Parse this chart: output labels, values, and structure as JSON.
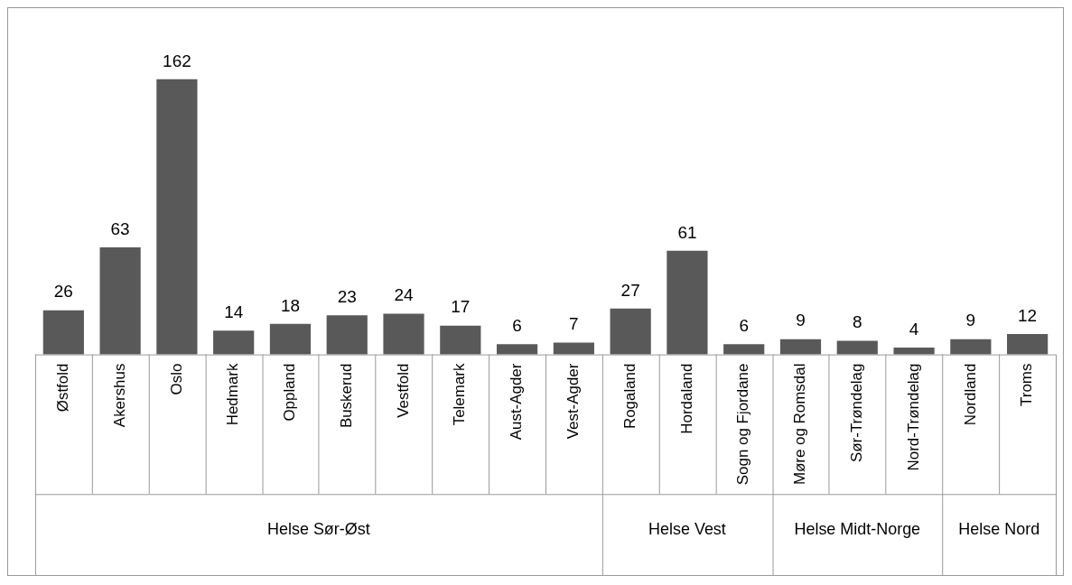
{
  "chart_data": {
    "type": "bar",
    "categories": [
      "Østfold",
      "Akershus",
      "Oslo",
      "Hedmark",
      "Oppland",
      "Buskerud",
      "Vestfold",
      "Telemark",
      "Aust-Agder",
      "Vest-Agder",
      "Rogaland",
      "Hordaland",
      "Sogn og Fjordane",
      "Møre og Romsdal",
      "Sør-Trøndelag",
      "Nord-Trøndelag",
      "Nordland",
      "Troms"
    ],
    "values": [
      26,
      63,
      162,
      14,
      18,
      23,
      24,
      17,
      6,
      7,
      27,
      61,
      6,
      9,
      8,
      4,
      9,
      12
    ],
    "color": "#595959",
    "data_labels": true,
    "grid": false,
    "legend": false,
    "annotations": [
      "Helse Sør-Øst",
      "Helse Vest",
      "Helse Midt-Norge",
      "Helse Nord"
    ]
  }
}
